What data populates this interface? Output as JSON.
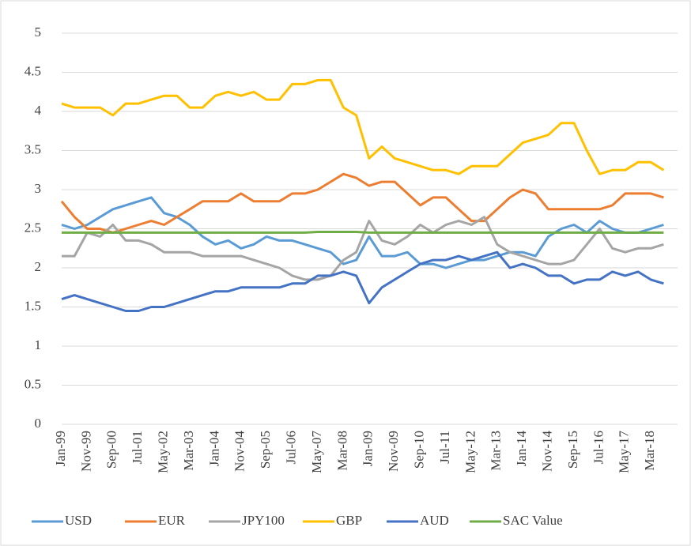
{
  "chart_data": {
    "type": "line",
    "categories": [
      "Jan-99",
      null,
      "Nov-99",
      null,
      "Sep-00",
      null,
      "Jul-01",
      null,
      "May-02",
      null,
      "Mar-03",
      null,
      "Jan-04",
      null,
      "Nov-04",
      null,
      "Sep-05",
      null,
      "Jul-06",
      null,
      "May-07",
      null,
      "Mar-08",
      null,
      "Jan-09",
      null,
      "Nov-09",
      null,
      "Sep-10",
      null,
      "Jul-11",
      null,
      "May-12",
      null,
      "Mar-13",
      null,
      "Jan-14",
      null,
      "Nov-14",
      null,
      "Sep-15",
      null,
      "Jul-16",
      null,
      "May-17",
      null,
      "Mar-18",
      null
    ],
    "series": [
      {
        "name": "USD",
        "color": "#5b9bd5",
        "values": [
          2.55,
          2.5,
          2.55,
          2.65,
          2.75,
          2.8,
          2.85,
          2.9,
          2.7,
          2.65,
          2.55,
          2.4,
          2.3,
          2.35,
          2.25,
          2.3,
          2.4,
          2.35,
          2.35,
          2.3,
          2.25,
          2.2,
          2.05,
          2.1,
          2.4,
          2.15,
          2.15,
          2.2,
          2.05,
          2.05,
          2.0,
          2.05,
          2.1,
          2.1,
          2.15,
          2.2,
          2.2,
          2.15,
          2.4,
          2.5,
          2.55,
          2.45,
          2.6,
          2.5,
          2.45,
          2.45,
          2.5,
          2.55
        ]
      },
      {
        "name": "EUR",
        "color": "#ed7d31",
        "values": [
          2.85,
          2.65,
          2.5,
          2.5,
          2.45,
          2.5,
          2.55,
          2.6,
          2.55,
          2.65,
          2.75,
          2.85,
          2.85,
          2.85,
          2.95,
          2.85,
          2.85,
          2.85,
          2.95,
          2.95,
          3.0,
          3.1,
          3.2,
          3.15,
          3.05,
          3.1,
          3.1,
          2.95,
          2.8,
          2.9,
          2.9,
          2.75,
          2.6,
          2.6,
          2.75,
          2.9,
          3.0,
          2.95,
          2.75,
          2.75,
          2.75,
          2.75,
          2.75,
          2.8,
          2.95,
          2.95,
          2.95,
          2.9
        ]
      },
      {
        "name": "JPY100",
        "color": "#a5a5a5",
        "values": [
          2.15,
          2.15,
          2.45,
          2.4,
          2.55,
          2.35,
          2.35,
          2.3,
          2.2,
          2.2,
          2.2,
          2.15,
          2.15,
          2.15,
          2.15,
          2.1,
          2.05,
          2.0,
          1.9,
          1.85,
          1.85,
          1.9,
          2.1,
          2.2,
          2.6,
          2.35,
          2.3,
          2.4,
          2.55,
          2.45,
          2.55,
          2.6,
          2.55,
          2.65,
          2.3,
          2.2,
          2.15,
          2.1,
          2.05,
          2.05,
          2.1,
          2.3,
          2.5,
          2.25,
          2.2,
          2.25,
          2.25,
          2.3
        ]
      },
      {
        "name": "GBP",
        "color": "#ffc000",
        "values": [
          4.1,
          4.05,
          4.05,
          4.05,
          3.95,
          4.1,
          4.1,
          4.15,
          4.2,
          4.2,
          4.05,
          4.05,
          4.2,
          4.25,
          4.2,
          4.25,
          4.15,
          4.15,
          4.35,
          4.35,
          4.4,
          4.4,
          4.05,
          3.95,
          3.4,
          3.55,
          3.4,
          3.35,
          3.3,
          3.25,
          3.25,
          3.2,
          3.3,
          3.3,
          3.3,
          3.45,
          3.6,
          3.65,
          3.7,
          3.85,
          3.85,
          3.5,
          3.2,
          3.25,
          3.25,
          3.35,
          3.35,
          3.25
        ]
      },
      {
        "name": "AUD",
        "color": "#4472c4",
        "values": [
          1.6,
          1.65,
          1.6,
          1.55,
          1.5,
          1.45,
          1.45,
          1.5,
          1.5,
          1.55,
          1.6,
          1.65,
          1.7,
          1.7,
          1.75,
          1.75,
          1.75,
          1.75,
          1.8,
          1.8,
          1.9,
          1.9,
          1.95,
          1.9,
          1.55,
          1.75,
          1.85,
          1.95,
          2.05,
          2.1,
          2.1,
          2.15,
          2.1,
          2.15,
          2.2,
          2.0,
          2.05,
          2.0,
          1.9,
          1.9,
          1.8,
          1.85,
          1.85,
          1.95,
          1.9,
          1.95,
          1.85,
          1.8
        ]
      },
      {
        "name": "SAC Value",
        "color": "#70ad47",
        "values": [
          2.45,
          2.45,
          2.45,
          2.45,
          2.45,
          2.45,
          2.45,
          2.45,
          2.45,
          2.45,
          2.45,
          2.45,
          2.45,
          2.45,
          2.45,
          2.45,
          2.45,
          2.45,
          2.45,
          2.45,
          2.46,
          2.46,
          2.46,
          2.46,
          2.45,
          2.45,
          2.45,
          2.45,
          2.45,
          2.45,
          2.45,
          2.45,
          2.45,
          2.45,
          2.45,
          2.45,
          2.45,
          2.45,
          2.45,
          2.45,
          2.45,
          2.45,
          2.45,
          2.45,
          2.45,
          2.45,
          2.45,
          2.45
        ]
      }
    ],
    "ylim": [
      0,
      5
    ],
    "yticks": [
      0,
      0.5,
      1,
      1.5,
      2,
      2.5,
      3,
      3.5,
      4,
      4.5,
      5
    ],
    "grid": true,
    "legend": "bottom"
  }
}
